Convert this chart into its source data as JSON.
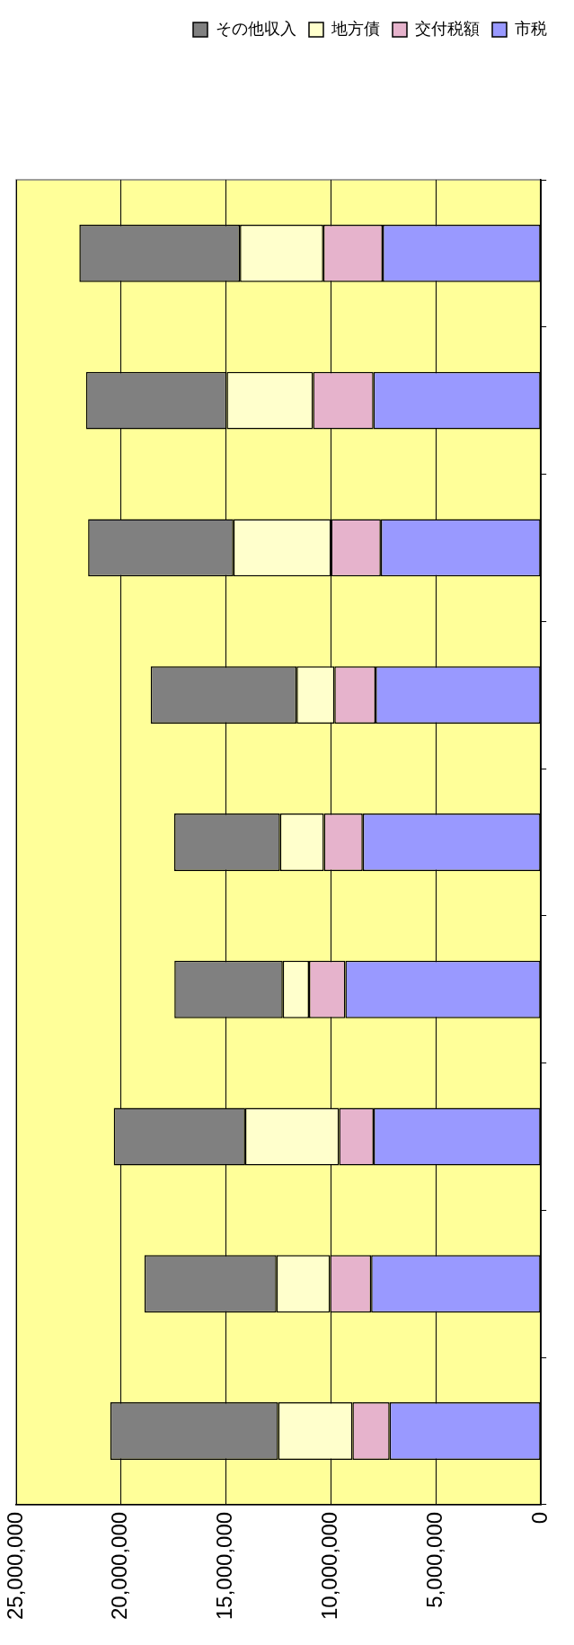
{
  "chart_data": {
    "type": "bar",
    "orientation": "horizontal",
    "stacked": true,
    "categories": [
      null,
      null,
      null,
      null,
      null,
      null,
      null,
      null,
      null
    ],
    "series": [
      {
        "name": "市税",
        "color": "#9999ff",
        "values": [
          7540000,
          7980000,
          7630000,
          7880000,
          8490000,
          9320000,
          7970000,
          8090000,
          7210000
        ]
      },
      {
        "name": "交付税額",
        "color": "#e6b3cc",
        "values": [
          2830000,
          2880000,
          2370000,
          1960000,
          1850000,
          1730000,
          1650000,
          1960000,
          1770000
        ]
      },
      {
        "name": "地方債",
        "color": "#ffffcc",
        "values": [
          3970000,
          4110000,
          4650000,
          1800000,
          2090000,
          1250000,
          4470000,
          2550000,
          3540000
        ]
      },
      {
        "name": "その他収入",
        "color": "#808080",
        "values": [
          7650000,
          6700000,
          6920000,
          6950000,
          5040000,
          5160000,
          6260000,
          6290000,
          8000000
        ]
      }
    ],
    "xlim": [
      25000000,
      0
    ],
    "xticks": [
      {
        "value": 25000000,
        "label": "25,000,000"
      },
      {
        "value": 20000000,
        "label": "20,000,000"
      },
      {
        "value": 15000000,
        "label": "15,000,000"
      },
      {
        "value": 10000000,
        "label": "10,000,000"
      },
      {
        "value": 5000000,
        "label": "5,000,000"
      },
      0
    ],
    "grid": "x",
    "legend": "top right"
  }
}
